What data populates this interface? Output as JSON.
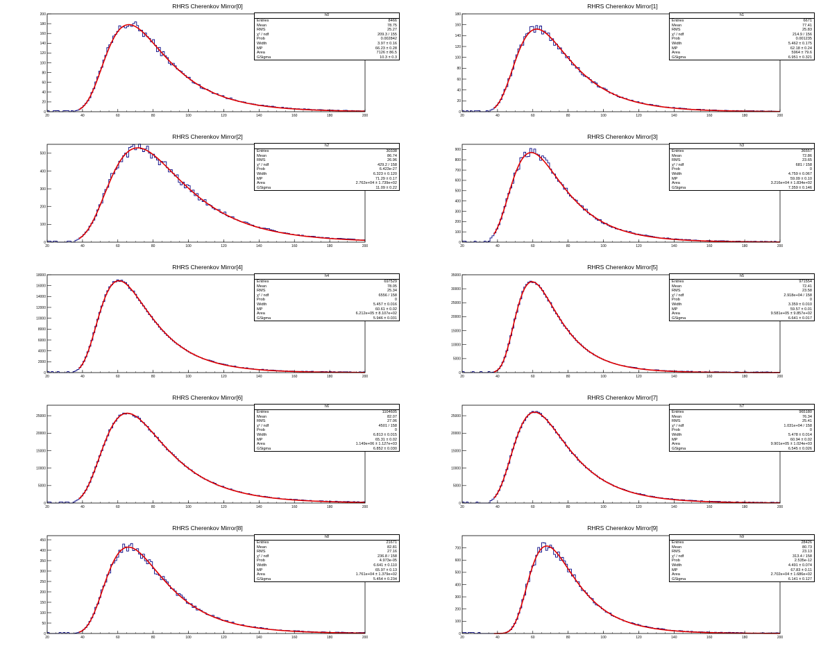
{
  "xaxis": {
    "min": 20,
    "max": 200,
    "ticks": [
      20,
      40,
      60,
      80,
      100,
      120,
      140,
      160,
      180,
      200
    ]
  },
  "chart_data": [
    {
      "type": "histogram-fit",
      "title": "RHRS Cherenkov Mirror[0]",
      "hist_name": "h0",
      "ylim": [
        0,
        200
      ],
      "yticks": [
        0,
        20,
        40,
        60,
        80,
        100,
        120,
        140,
        160,
        180,
        200
      ],
      "stats": [
        [
          "Entries",
          "8466"
        ],
        [
          "Mean",
          "78.75"
        ],
        [
          "RMS",
          "25.27"
        ],
        [
          "χ² / ndf",
          "209.3 / 155"
        ],
        [
          "Prob",
          "0.002842"
        ],
        [
          "Width",
          "3.97 ± 0.16"
        ],
        [
          "MP",
          "66.23 ± 0.28"
        ],
        [
          "Area",
          "7126 ± 86.5"
        ],
        [
          "GSigma",
          "10.3 ± 0.3"
        ]
      ],
      "fit": {
        "mp": 66.23,
        "width": 3.97,
        "gsigma": 10.3,
        "peak": 178
      }
    },
    {
      "type": "histogram-fit",
      "title": "RHRS Cherenkov Mirror[1]",
      "hist_name": "h1",
      "ylim": [
        0,
        180
      ],
      "yticks": [
        0,
        20,
        40,
        60,
        80,
        100,
        120,
        140,
        160,
        180
      ],
      "stats": [
        [
          "Entries",
          "6671"
        ],
        [
          "Mean",
          "77.41"
        ],
        [
          "RMS",
          "25.83"
        ],
        [
          "χ² / ndf",
          "214.9 / 156"
        ],
        [
          "Prob",
          "0.001235"
        ],
        [
          "Width",
          "5.462 ± 0.175"
        ],
        [
          "MP",
          "62.18 ± 0.24"
        ],
        [
          "Area",
          "5964 ± 79.6"
        ],
        [
          "GSigma",
          "6.951 ± 0.321"
        ]
      ],
      "fit": {
        "mp": 62.18,
        "width": 5.462,
        "gsigma": 6.951,
        "peak": 152
      }
    },
    {
      "type": "histogram-fit",
      "title": "RHRS Cherenkov Mirror[2]",
      "hist_name": "h2",
      "ylim": [
        0,
        550
      ],
      "yticks": [
        0,
        100,
        200,
        300,
        400,
        500
      ],
      "stats": [
        [
          "Entries",
          "30338"
        ],
        [
          "Mean",
          "86.74"
        ],
        [
          "RMS",
          "26.96"
        ],
        [
          "χ² / ndf",
          "429.2 / 158"
        ],
        [
          "Prob",
          "6.423e-27"
        ],
        [
          "Width",
          "6.323 ± 0.120"
        ],
        [
          "MP",
          "71.29 ± 0.17"
        ],
        [
          "Area",
          "2.762e+04 ± 1.739e+02"
        ],
        [
          "GSigma",
          "11.09 ± 0.22"
        ]
      ],
      "fit": {
        "mp": 71.29,
        "width": 6.323,
        "gsigma": 11.09,
        "peak": 530
      }
    },
    {
      "type": "histogram-fit",
      "title": "RHRS Cherenkov Mirror[3]",
      "hist_name": "h3",
      "ylim": [
        0,
        950
      ],
      "yticks": [
        0,
        100,
        200,
        300,
        400,
        500,
        600,
        700,
        800,
        900
      ],
      "stats": [
        [
          "Entries",
          "36557"
        ],
        [
          "Mean",
          "72.86"
        ],
        [
          "RMS",
          "23.65"
        ],
        [
          "χ² / ndf",
          "681 / 158"
        ],
        [
          "Prob",
          "0"
        ],
        [
          "Width",
          "4.759 ± 0.067"
        ],
        [
          "MP",
          "59.09 ± 0.10"
        ],
        [
          "Area",
          "3.216e+04 ± 1.834e+02"
        ],
        [
          "GSigma",
          "7.359 ± 0.146"
        ]
      ],
      "fit": {
        "mp": 59.09,
        "width": 4.759,
        "gsigma": 7.359,
        "peak": 870
      }
    },
    {
      "type": "histogram-fit",
      "title": "RHRS Cherenkov Mirror[4]",
      "hist_name": "h4",
      "ylim": [
        0,
        18000
      ],
      "yticks": [
        0,
        2000,
        4000,
        6000,
        8000,
        10000,
        12000,
        14000,
        16000,
        18000
      ],
      "stats": [
        [
          "Entries",
          "697529"
        ],
        [
          "Mean",
          "78.05"
        ],
        [
          "RMS",
          "25.34"
        ],
        [
          "χ² / ndf",
          "6556 / 158"
        ],
        [
          "Prob",
          "0"
        ],
        [
          "Width",
          "5.457 ± 0.016"
        ],
        [
          "MP",
          "60.61 ± 0.02"
        ],
        [
          "Area",
          "6.212e+05 ± 8.107e+02"
        ],
        [
          "GSigma",
          "5.946 ± 0.031"
        ]
      ],
      "fit": {
        "mp": 60.61,
        "width": 5.457,
        "gsigma": 5.946,
        "peak": 16900
      }
    },
    {
      "type": "histogram-fit",
      "title": "RHRS Cherenkov Mirror[5]",
      "hist_name": "h5",
      "ylim": [
        0,
        35000
      ],
      "yticks": [
        0,
        5000,
        10000,
        15000,
        20000,
        25000,
        30000,
        35000
      ],
      "stats": [
        [
          "Entries",
          "971554"
        ],
        [
          "Mean",
          "72.41"
        ],
        [
          "RMS",
          "23.58"
        ],
        [
          "χ² / ndf",
          "2.918e+04 / 158"
        ],
        [
          "Prob",
          "0"
        ],
        [
          "Width",
          "3.359 ± 0.010"
        ],
        [
          "MP",
          "59.57 ± 0.01"
        ],
        [
          "Area",
          "9.581e+05 ± 9.857e+02"
        ],
        [
          "GSigma",
          "6.641 ± 0.017"
        ]
      ],
      "fit": {
        "mp": 59.57,
        "width": 3.359,
        "gsigma": 6.641,
        "peak": 32500
      }
    },
    {
      "type": "histogram-fit",
      "title": "RHRS Cherenkov Mirror[6]",
      "hist_name": "h6",
      "ylim": [
        0,
        28000
      ],
      "yticks": [
        0,
        5000,
        10000,
        15000,
        20000,
        25000
      ],
      "stats": [
        [
          "Entries",
          "1104605"
        ],
        [
          "Mean",
          "82.07"
        ],
        [
          "RMS",
          "27.06"
        ],
        [
          "χ² / ndf",
          "4501 / 158"
        ],
        [
          "Prob",
          "0"
        ],
        [
          "Width",
          "6.813 ± 0.015"
        ],
        [
          "MP",
          "65.31 ± 0.02"
        ],
        [
          "Area",
          "1.149e+06 ± 1.127e+03"
        ],
        [
          "GSigma",
          "6.852 ± 0.030"
        ]
      ],
      "fit": {
        "mp": 65.31,
        "width": 6.813,
        "gsigma": 6.852,
        "peak": 25700
      }
    },
    {
      "type": "histogram-fit",
      "title": "RHRS Cherenkov Mirror[7]",
      "hist_name": "h7",
      "ylim": [
        0,
        28000
      ],
      "yticks": [
        0,
        5000,
        10000,
        15000,
        20000,
        25000
      ],
      "stats": [
        [
          "Entries",
          "965180"
        ],
        [
          "Mean",
          "76.34"
        ],
        [
          "RMS",
          "25.41"
        ],
        [
          "χ² / ndf",
          "1.031e+04 / 158"
        ],
        [
          "Prob",
          "0"
        ],
        [
          "Width",
          "5.478 ± 0.014"
        ],
        [
          "MP",
          "60.94 ± 0.02"
        ],
        [
          "Area",
          "9.901e+05 ± 1.024e+03"
        ],
        [
          "GSigma",
          "6.545 ± 0.026"
        ]
      ],
      "fit": {
        "mp": 60.94,
        "width": 5.478,
        "gsigma": 6.545,
        "peak": 26000
      }
    },
    {
      "type": "histogram-fit",
      "title": "RHRS Cherenkov Mirror[8]",
      "hist_name": "h8",
      "ylim": [
        0,
        470
      ],
      "yticks": [
        0,
        50,
        100,
        150,
        200,
        250,
        300,
        350,
        400,
        450
      ],
      "stats": [
        [
          "Entries",
          "21671"
        ],
        [
          "Mean",
          "82.81"
        ],
        [
          "RMS",
          "27.16"
        ],
        [
          "χ² / ndf",
          "236.8 / 158"
        ],
        [
          "Prob",
          "4.973e-05"
        ],
        [
          "Width",
          "6.641 ± 0.110"
        ],
        [
          "MP",
          "65.97 ± 0.13"
        ],
        [
          "Area",
          "1.761e+04 ± 1.379e+02"
        ],
        [
          "GSigma",
          "5.454 ± 0.234"
        ]
      ],
      "fit": {
        "mp": 65.97,
        "width": 6.641,
        "gsigma": 5.454,
        "peak": 415
      }
    },
    {
      "type": "histogram-fit",
      "title": "RHRS Cherenkov Mirror[9]",
      "hist_name": "h9",
      "ylim": [
        0,
        800
      ],
      "yticks": [
        0,
        100,
        200,
        300,
        400,
        500,
        600,
        700
      ],
      "stats": [
        [
          "Entries",
          "28426"
        ],
        [
          "Mean",
          "80.73"
        ],
        [
          "RMS",
          "23.13"
        ],
        [
          "χ² / ndf",
          "313.4 / 158"
        ],
        [
          "Prob",
          "2.535e-12"
        ],
        [
          "Width",
          "4.491 ± 0.074"
        ],
        [
          "MP",
          "67.83 ± 0.11"
        ],
        [
          "Area",
          "2.702e+04 ± 1.686e+02"
        ],
        [
          "GSigma",
          "6.141 ± 0.127"
        ]
      ],
      "fit": {
        "mp": 67.83,
        "width": 4.491,
        "gsigma": 6.141,
        "peak": 715
      }
    }
  ]
}
